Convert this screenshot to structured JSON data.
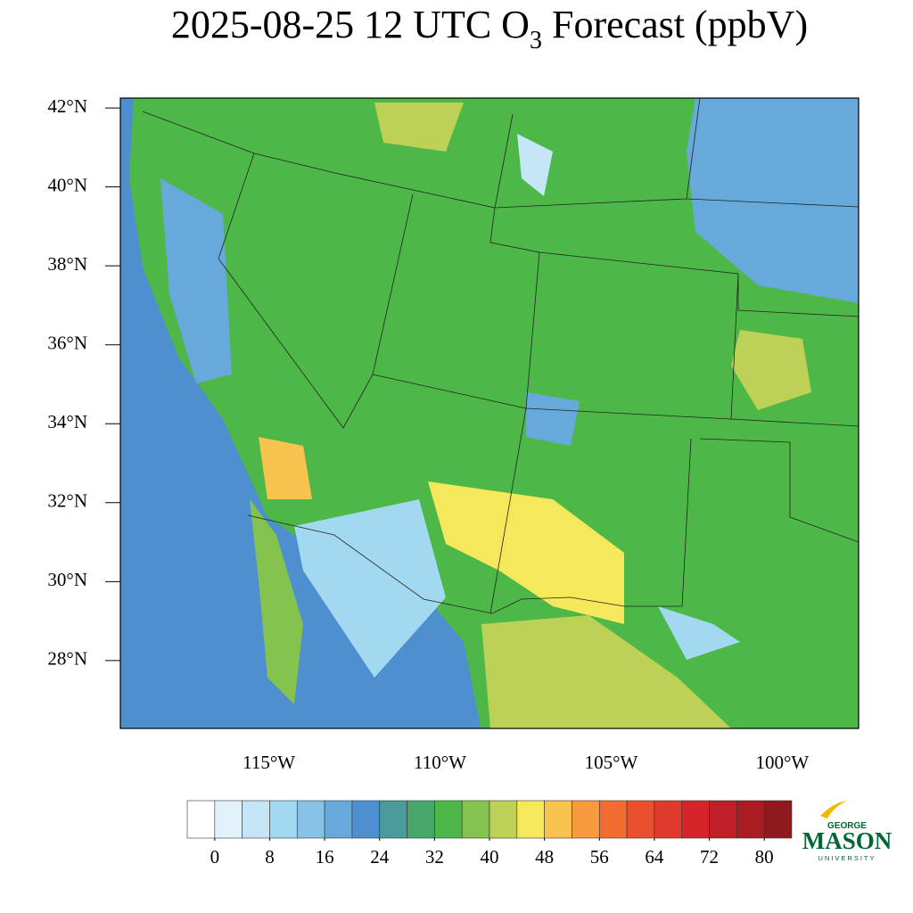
{
  "title": {
    "before": "2025-08-25 12 UTC O",
    "subscript": "3",
    "after": " Forecast (ppbV)"
  },
  "map": {
    "latlim": [
      26.28,
      42.25
    ],
    "lonlim": [
      -119.34,
      -97.77
    ],
    "latticks": [
      {
        "value": 42,
        "label": "42°N"
      },
      {
        "value": 40,
        "label": "40°N"
      },
      {
        "value": 38,
        "label": "38°N"
      },
      {
        "value": 36,
        "label": "36°N"
      },
      {
        "value": 34,
        "label": "34°N"
      },
      {
        "value": 32,
        "label": "32°N"
      },
      {
        "value": 30,
        "label": "30°N"
      },
      {
        "value": 28,
        "label": "28°N"
      }
    ],
    "lonticks": [
      {
        "value": -115,
        "label": "115°W"
      },
      {
        "value": -110,
        "label": "110°W"
      },
      {
        "value": -105,
        "label": "105°W"
      },
      {
        "value": -100,
        "label": "100°W"
      }
    ]
  },
  "colorbar": {
    "lim": [
      -4,
      84
    ],
    "ticks": [
      0,
      8,
      16,
      24,
      32,
      40,
      48,
      56,
      64,
      72,
      80
    ],
    "colors": [
      "#ffffff",
      "#e1f2fb",
      "#c4e6f6",
      "#a3d8f1",
      "#86c2e6",
      "#68a9dc",
      "#4e8fcf",
      "#4a9a9c",
      "#47a76b",
      "#4db848",
      "#84c44e",
      "#bdd156",
      "#f5e85a",
      "#f8c34f",
      "#f89a3e",
      "#f16d32",
      "#e8502e",
      "#e03a2c",
      "#d42429",
      "#bf1f26",
      "#a81c22",
      "#8e1a1e"
    ]
  },
  "logo": {
    "top": "GEORGE",
    "main": "MASON",
    "bottom": "UNIVERSITY"
  }
}
